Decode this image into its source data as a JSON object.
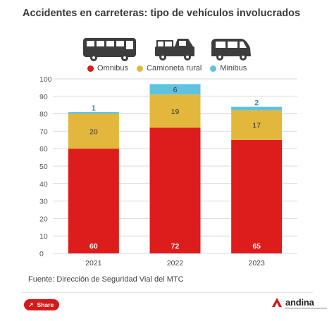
{
  "title": "Accidentes en carreteras: tipo de vehículos involucrados",
  "icons": [
    "bus-icon",
    "pickup-truck-icon",
    "minibus-icon"
  ],
  "colors": {
    "omnibus": "#dd1c1c",
    "camioneta": "#e3b73c",
    "minibus": "#5ec3e0",
    "grid": "#d9d9d9"
  },
  "chart_data": {
    "type": "bar",
    "stacked": true,
    "categories": [
      "2021",
      "2022",
      "2023"
    ],
    "series": [
      {
        "name": "Omnibus",
        "values": [
          60,
          72,
          65
        ],
        "color": "#dd1c1c"
      },
      {
        "name": "Camioneta rural",
        "values": [
          20,
          19,
          17
        ],
        "color": "#e3b73c"
      },
      {
        "name": "Minibus",
        "values": [
          1,
          6,
          2
        ],
        "color": "#5ec3e0"
      }
    ],
    "y_ticks": [
      "0",
      "10",
      "20",
      "30",
      "40",
      "50",
      "60",
      "70",
      "80",
      "90",
      "100"
    ],
    "ylim": [
      0,
      100
    ],
    "grid": true,
    "legend": "top"
  },
  "source": "Fuente: Dirección de Seguridad Vial del MTC",
  "share_label": "Share",
  "logo_text": "andina"
}
